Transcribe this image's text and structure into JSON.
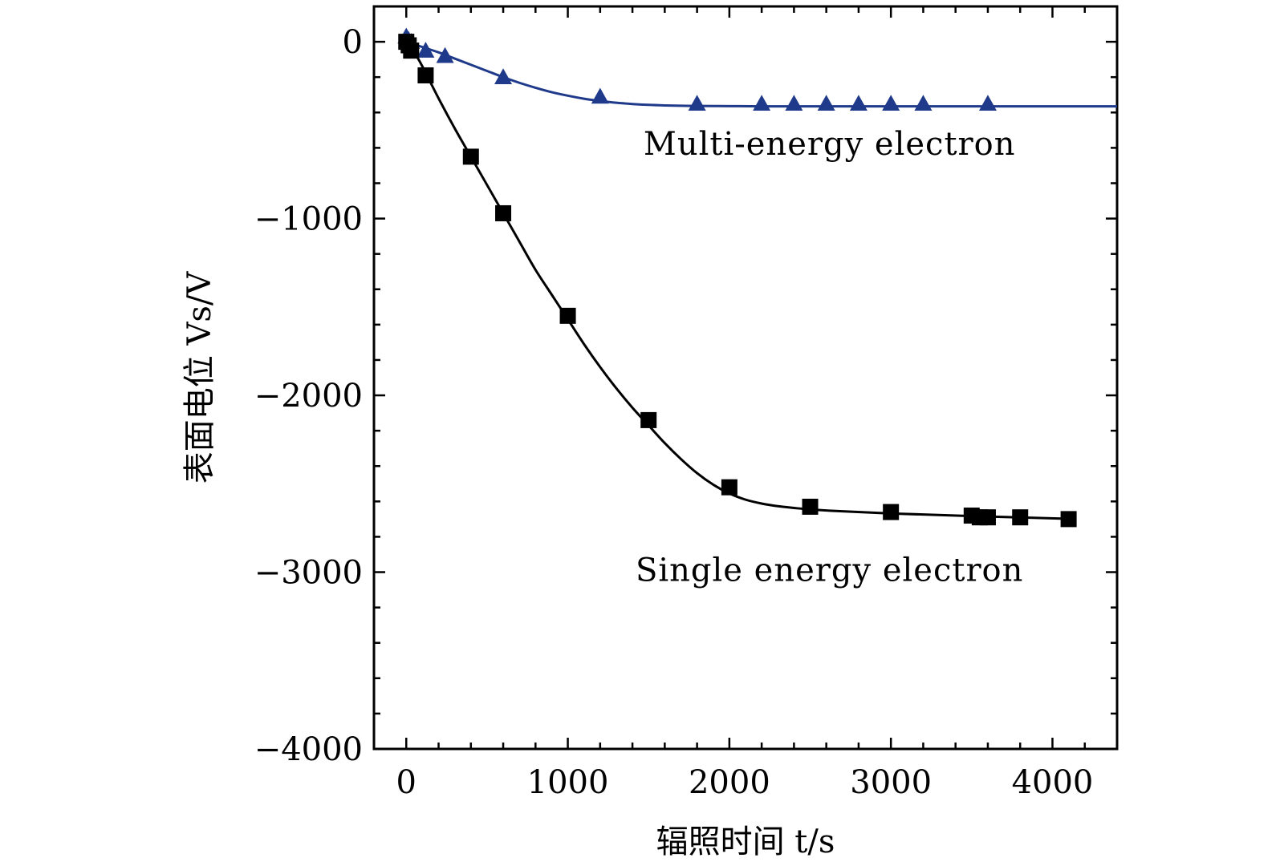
{
  "chart_data": {
    "type": "scatter",
    "xlabel": "辐照时间 t/s",
    "ylabel": "表面电位 Vs/V",
    "xlim": [
      -200,
      4400
    ],
    "ylim": [
      -4000,
      200
    ],
    "xticks": [
      0,
      1000,
      2000,
      3000,
      4000
    ],
    "xtick_labels": [
      "0",
      "1000",
      "2000",
      "3000",
      "4000"
    ],
    "yticks": [
      0,
      -1000,
      -2000,
      -3000,
      -4000
    ],
    "ytick_labels": [
      "0",
      "−1000",
      "−2000",
      "−3000",
      "−4000"
    ],
    "grid": false,
    "series": [
      {
        "name": "Multi-energy electron",
        "marker": "triangle",
        "color": "#1f3a8a",
        "x": [
          0,
          15,
          30,
          120,
          240,
          600,
          1200,
          1800,
          2200,
          2400,
          2600,
          2800,
          3000,
          3200,
          3600
        ],
        "y": [
          30,
          10,
          0,
          -50,
          -80,
          -200,
          -310,
          -350,
          -350,
          -350,
          -350,
          -350,
          -350,
          -350,
          -350
        ],
        "fit_x": [
          0,
          100,
          200,
          300,
          400,
          500,
          600,
          700,
          800,
          900,
          1000,
          1100,
          1200,
          1300,
          1400,
          1500,
          1600,
          1700,
          1800,
          2000,
          2200,
          2600,
          3000,
          3600,
          4400
        ],
        "fit_y": [
          0,
          -30,
          -60,
          -95,
          -130,
          -165,
          -200,
          -232,
          -260,
          -285,
          -305,
          -322,
          -335,
          -345,
          -352,
          -357,
          -360,
          -362,
          -363,
          -364,
          -365,
          -365,
          -365,
          -365,
          -365
        ]
      },
      {
        "name": "Single energy electron",
        "marker": "square",
        "color": "#000000",
        "x": [
          0,
          15,
          30,
          120,
          400,
          600,
          1000,
          1500,
          2000,
          2500,
          3000,
          3500,
          3550,
          3600,
          3800,
          4100
        ],
        "y": [
          0,
          -20,
          -50,
          -190,
          -650,
          -970,
          -1550,
          -2140,
          -2520,
          -2630,
          -2660,
          -2680,
          -2690,
          -2690,
          -2690,
          -2700
        ],
        "fit_x": [
          0,
          50,
          100,
          200,
          300,
          400,
          500,
          600,
          700,
          800,
          900,
          1000,
          1100,
          1200,
          1300,
          1400,
          1500,
          1600,
          1700,
          1800,
          1900,
          2000,
          2100,
          2200,
          2300,
          2400,
          2500,
          2700,
          3000,
          3500,
          4100
        ],
        "fit_y": [
          0,
          -60,
          -140,
          -320,
          -490,
          -650,
          -810,
          -970,
          -1130,
          -1290,
          -1430,
          -1570,
          -1710,
          -1840,
          -1960,
          -2070,
          -2170,
          -2270,
          -2360,
          -2440,
          -2505,
          -2555,
          -2590,
          -2612,
          -2627,
          -2637,
          -2645,
          -2656,
          -2668,
          -2683,
          -2698
        ]
      }
    ],
    "annotations": [
      {
        "text": "Multi-energy electron",
        "x": 2620,
        "y": -640
      },
      {
        "text": "Single energy electron",
        "x": 2620,
        "y": -3050
      }
    ]
  }
}
